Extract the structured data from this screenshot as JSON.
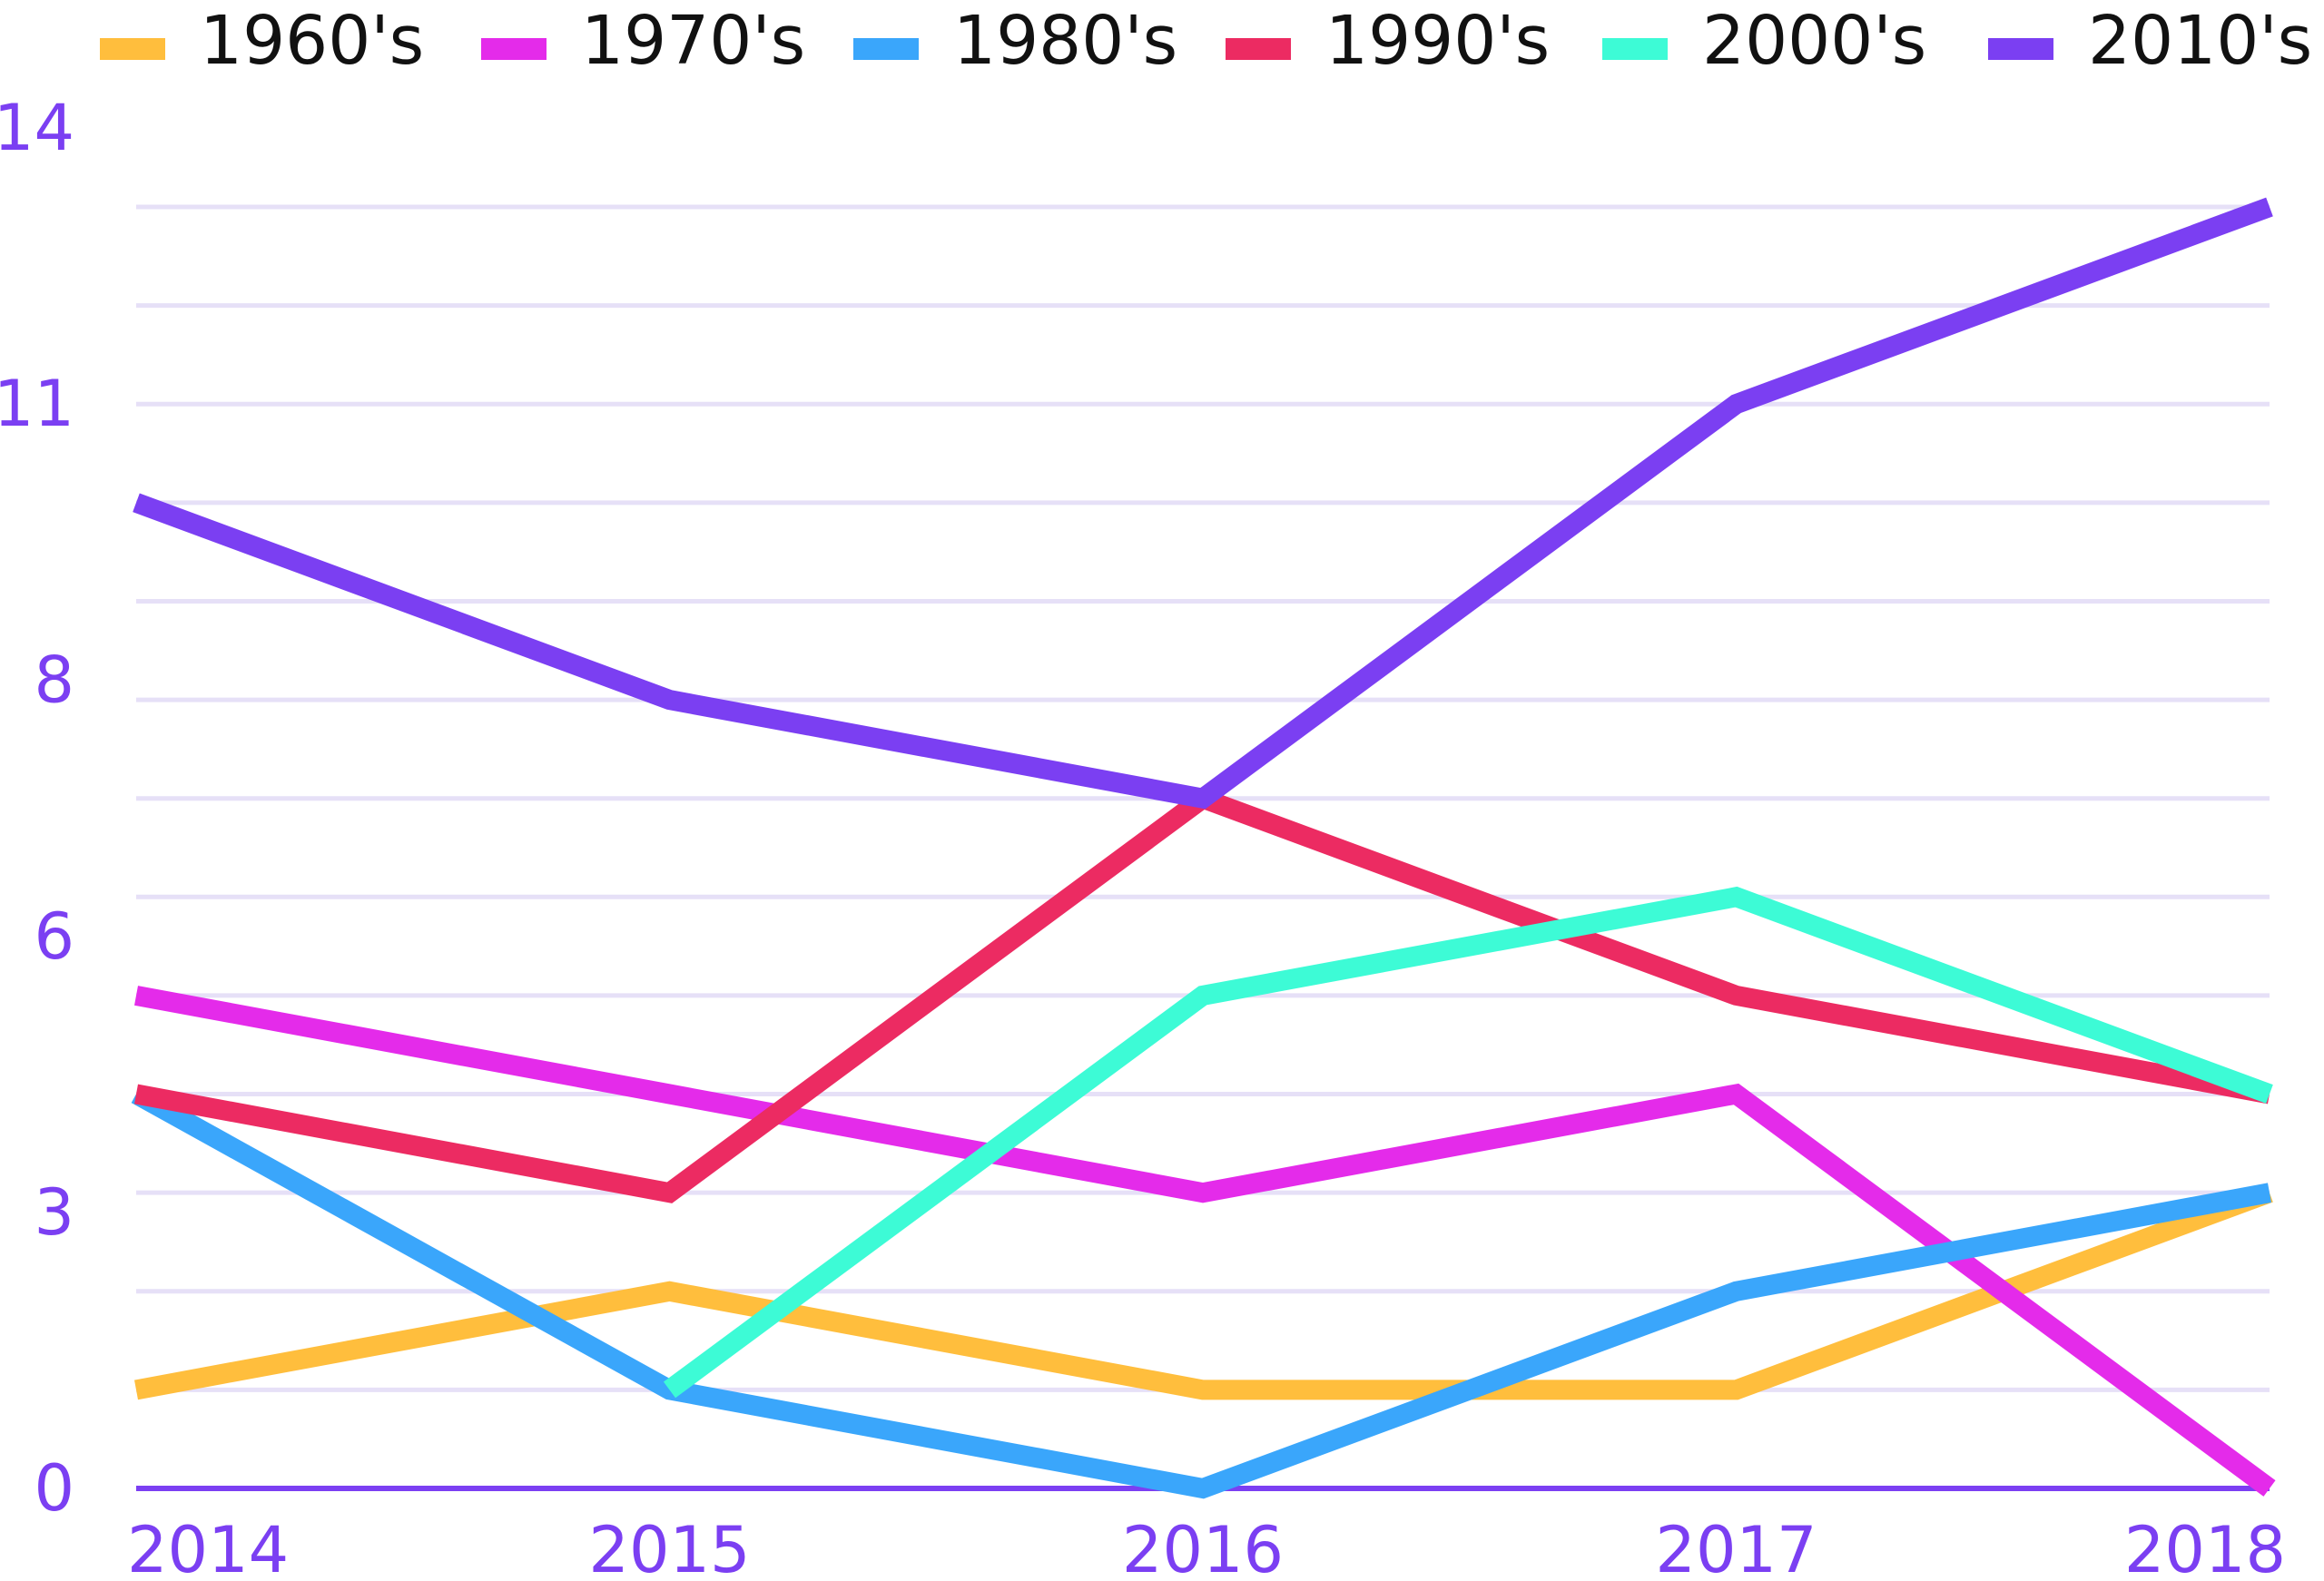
{
  "chart_data": {
    "type": "line",
    "x": [
      "2014",
      "2015",
      "2016",
      "2017",
      "2018"
    ],
    "yticks": [
      "0",
      "3",
      "6",
      "8",
      "11",
      "14"
    ],
    "series": [
      {
        "name": "1960's",
        "color": "#ffbe3d",
        "values": [
          1,
          2,
          1,
          1,
          3
        ]
      },
      {
        "name": "1970's",
        "color": "#e42bea",
        "values": [
          5,
          4,
          3,
          4,
          0
        ]
      },
      {
        "name": "1980's",
        "color": "#3aa6fb",
        "values": [
          4,
          1,
          0,
          2,
          3
        ]
      },
      {
        "name": "1990's",
        "color": "#ec2b62",
        "values": [
          4,
          3,
          7,
          5,
          4
        ]
      },
      {
        "name": "2000's",
        "color": "#3dfbd6",
        "values": [
          null,
          1,
          5,
          6,
          4
        ]
      },
      {
        "name": "2010's",
        "color": "#7b3ff2",
        "values": [
          10,
          8,
          7,
          11,
          13
        ]
      }
    ],
    "ylim": [
      0,
      13
    ],
    "grid": true,
    "legend": "top",
    "accent_color": "#7b3ff2",
    "grid_color": "#e6e0f7"
  }
}
